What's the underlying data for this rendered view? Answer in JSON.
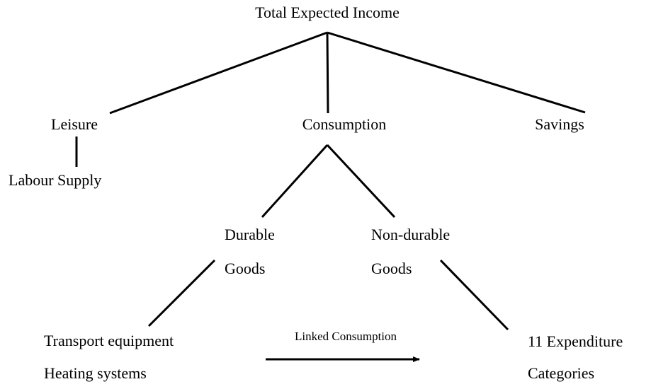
{
  "title": "Total Expected Income",
  "nodes": {
    "leisure": "Leisure",
    "consumption": "Consumption",
    "savings": "Savings",
    "labour_supply": "Labour Supply",
    "durable": [
      "Durable",
      "Goods"
    ],
    "non_durable": [
      "Non-durable",
      "Goods"
    ],
    "durable_items": [
      "Transport equipment",
      "Heating systems"
    ],
    "expenditure": [
      "11 Expenditure",
      "Categories"
    ]
  },
  "link_label": "Linked Consumption"
}
